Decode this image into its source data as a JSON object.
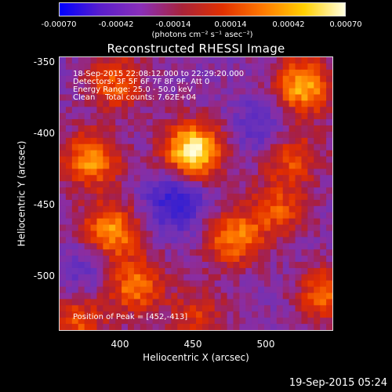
{
  "colorbar": {
    "tick_labels": [
      "-0.00070",
      "-0.00042",
      "-0.00014",
      "0.00014",
      "0.00042",
      "0.00070"
    ],
    "units": "(photons cm⁻² s⁻¹ asec⁻²)",
    "colors": [
      "#0000ff",
      "#5a1ecc",
      "#8a2fb8",
      "#a8233a",
      "#e23000",
      "#ff7a00",
      "#ffd000",
      "#ffffe0"
    ]
  },
  "chart_data": {
    "type": "heatmap",
    "title": "Reconstructed RHESSI Image",
    "xlabel": "Heliocentric X (arcsec)",
    "ylabel": "Heliocentric Y (arcsec)",
    "xlim": [
      360,
      548
    ],
    "ylim": [
      -540,
      -347
    ],
    "x_ticks": [
      "400",
      "450",
      "500"
    ],
    "y_ticks": [
      "-350",
      "-400",
      "-450",
      "-500"
    ],
    "zlim": [
      -0.0007,
      0.0007
    ],
    "sources": [
      {
        "x": 452,
        "y": -413,
        "amp": 1.0
      },
      {
        "x": 382,
        "y": -420,
        "amp": 0.65
      },
      {
        "x": 395,
        "y": -470,
        "amp": 0.7
      },
      {
        "x": 412,
        "y": -508,
        "amp": 0.6
      },
      {
        "x": 528,
        "y": -368,
        "amp": 0.75
      },
      {
        "x": 480,
        "y": -475,
        "amp": 0.6
      },
      {
        "x": 510,
        "y": -455,
        "amp": 0.45
      },
      {
        "x": 398,
        "y": -365,
        "amp": 0.5
      },
      {
        "x": 545,
        "y": -515,
        "amp": 0.55
      },
      {
        "x": 520,
        "y": -418,
        "amp": 0.45
      },
      {
        "x": 455,
        "y": -530,
        "amp": 0.35
      },
      {
        "x": 372,
        "y": -535,
        "amp": 0.45
      },
      {
        "x": 440,
        "y": -450,
        "amp": -0.55
      },
      {
        "x": 500,
        "y": -395,
        "amp": -0.3
      },
      {
        "x": 380,
        "y": -495,
        "amp": -0.25
      }
    ]
  },
  "info": {
    "line1": "18-Sep-2015 22:08:12.000 to 22:29:20.000",
    "line2": "Detectors: 3F 5F 6F 7F 8F 9F, Att 0",
    "line3": "Energy Range: 25.0 - 50.0 keV",
    "line4": "Clean    Total counts: 7.62E+04"
  },
  "peak_label": "Position of Peak = [452,-413]",
  "timestamp": "19-Sep-2015 05:24"
}
